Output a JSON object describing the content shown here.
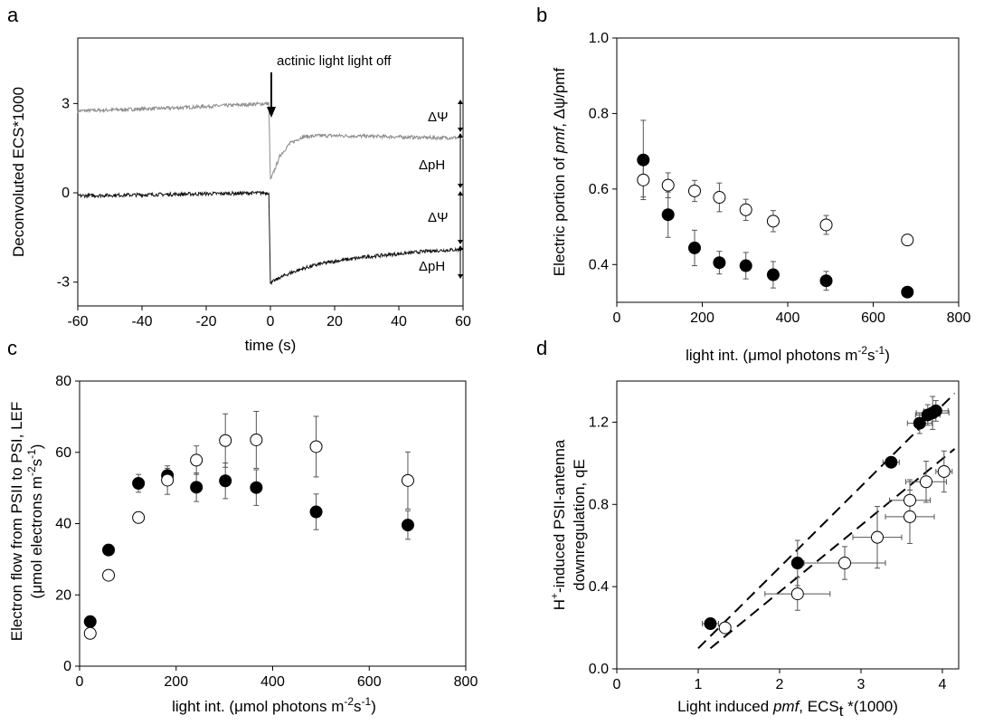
{
  "chart_data": [
    {
      "panel": "a",
      "type": "line",
      "xlabel": "time (s)",
      "ylabel": "Deconvoluted ECS*1000",
      "xlim": [
        -60,
        60
      ],
      "ylim": [
        -3.8,
        5.2
      ],
      "xticks": [
        -60,
        -40,
        -20,
        0,
        20,
        40,
        60
      ],
      "yticks": [
        -3,
        0,
        3
      ],
      "annotations": {
        "arrow_text": "actinic light light off",
        "dpsi_label": "ΔΨ",
        "dph_label": "ΔpH"
      },
      "series": [
        {
          "color": "#8c8c8c",
          "x": [
            -60,
            -30,
            -0.5,
            0,
            0.5,
            3,
            6,
            10,
            15,
            20,
            30,
            40,
            50,
            60
          ],
          "y": [
            2.75,
            2.85,
            3.0,
            0.45,
            0.55,
            1.25,
            1.65,
            1.88,
            1.92,
            1.92,
            1.9,
            1.88,
            1.85,
            1.85
          ]
        },
        {
          "color": "#111111",
          "x": [
            -60,
            -30,
            -0.5,
            0,
            0.5,
            3,
            6,
            10,
            15,
            20,
            30,
            40,
            50,
            60
          ],
          "y": [
            -0.1,
            -0.05,
            0.0,
            -3.0,
            -3.0,
            -2.85,
            -2.7,
            -2.55,
            -2.4,
            -2.3,
            -2.15,
            -2.05,
            -1.95,
            -1.9
          ]
        }
      ]
    },
    {
      "panel": "b",
      "type": "scatter",
      "xlabel": "light int. (μmol photons m⁻²s⁻¹)",
      "ylabel": "Electric portion of pmf, Δψ/pmf",
      "xlim": [
        0,
        800
      ],
      "ylim": [
        0.3,
        1.0
      ],
      "xticks": [
        0,
        200,
        400,
        600,
        800
      ],
      "yticks": [
        0.4,
        0.6,
        0.8,
        1.0
      ],
      "series": [
        {
          "marker": "filled",
          "x": [
            62,
            120,
            182,
            240,
            302,
            366,
            490,
            680
          ],
          "y": [
            0.677,
            0.532,
            0.444,
            0.405,
            0.397,
            0.373,
            0.357,
            0.327
          ],
          "err": [
            0.105,
            0.06,
            0.047,
            0.03,
            0.035,
            0.035,
            0.025,
            0.0
          ]
        },
        {
          "marker": "open",
          "x": [
            62,
            120,
            182,
            240,
            302,
            366,
            490,
            680
          ],
          "y": [
            0.624,
            0.61,
            0.595,
            0.578,
            0.545,
            0.515,
            0.505,
            0.465
          ],
          "err": [
            0.045,
            0.033,
            0.028,
            0.038,
            0.028,
            0.028,
            0.025,
            0.0
          ]
        }
      ]
    },
    {
      "panel": "c",
      "type": "scatter",
      "xlabel": "light int. (μmol photons m⁻²s⁻¹)",
      "ylabel": "Electron flow from PSII to PSI, LEF (μmol electrons m⁻²s⁻¹)",
      "xlim": [
        0,
        800
      ],
      "ylim": [
        0,
        80
      ],
      "xticks": [
        0,
        200,
        400,
        600,
        800
      ],
      "yticks": [
        0,
        20,
        40,
        60,
        80
      ],
      "series": [
        {
          "marker": "filled",
          "x": [
            22,
            60,
            122,
            182,
            242,
            302,
            366,
            490,
            680
          ],
          "y": [
            12.5,
            32.6,
            51.3,
            53.5,
            50.2,
            52.0,
            50.1,
            43.3,
            39.6
          ],
          "err": [
            0,
            0,
            2.5,
            2,
            4,
            5,
            5,
            5,
            4
          ]
        },
        {
          "marker": "open",
          "x": [
            22,
            60,
            122,
            182,
            242,
            302,
            366,
            490,
            680
          ],
          "y": [
            9.2,
            25.5,
            41.7,
            52.2,
            57.8,
            63.3,
            63.5,
            61.6,
            52.1
          ],
          "err": [
            1,
            0,
            0,
            4,
            4,
            7.5,
            8,
            8.5,
            8
          ]
        }
      ]
    },
    {
      "panel": "d",
      "type": "scatter",
      "xlabel": "Light induced pmf, ECSt *(1000)",
      "ylabel": "H⁺-induced PSII-antenna downregulation, qE",
      "xlim": [
        0,
        4.2
      ],
      "ylim": [
        0,
        1.4
      ],
      "xticks": [
        0,
        1,
        2,
        3,
        4
      ],
      "yticks": [
        0.0,
        0.4,
        0.8,
        1.2
      ],
      "series": [
        {
          "marker": "filled",
          "x": [
            1.15,
            2.22,
            3.37,
            3.72,
            3.82,
            3.88,
            3.92
          ],
          "y": [
            0.22,
            0.515,
            1.005,
            1.195,
            1.235,
            1.245,
            1.255
          ],
          "xerr": [
            0.1,
            0,
            0.1,
            0.15,
            0.15,
            0.2,
            0.15
          ],
          "yerr": [
            0,
            0.11,
            0,
            0.05,
            0.05,
            0.08,
            0.05
          ]
        },
        {
          "marker": "open",
          "x": [
            1.33,
            2.22,
            2.8,
            3.2,
            3.6,
            3.6,
            3.8,
            4.02
          ],
          "y": [
            0.2,
            0.365,
            0.515,
            0.64,
            0.74,
            0.82,
            0.91,
            0.96
          ],
          "xerr": [
            0,
            0.4,
            0.5,
            0.3,
            0.3,
            0.25,
            0.25,
            0.1
          ],
          "yerr": [
            0,
            0.08,
            0.08,
            0.15,
            0.13,
            0.1,
            0.1,
            0.1
          ]
        }
      ],
      "fit_lines": [
        {
          "x": [
            1.0,
            4.15
          ],
          "y": [
            0.1,
            1.34
          ]
        },
        {
          "x": [
            1.15,
            4.15
          ],
          "y": [
            0.1,
            1.07
          ]
        }
      ]
    }
  ],
  "panel_labels": [
    "a",
    "b",
    "c",
    "d"
  ],
  "text": {
    "a_ylabel": "Deconvoluted ECS*1000",
    "a_xlabel": "time (s)",
    "a_arrow_text": "actinic light light off",
    "dpsi": "ΔΨ",
    "dph": "ΔpH",
    "b_ylabel_pre": "Electric portion of ",
    "b_ylabel_it": "pmf",
    "b_ylabel_post": ", Δψ/pmf",
    "bc_xlabel_pre": "light int. (μmol photons m",
    "bc_xlabel_sup1": "-2",
    "bc_xlabel_mid": "s",
    "bc_xlabel_sup2": "-1",
    "bc_xlabel_post": ")",
    "c_ylabel1": "Electron flow from PSII to PSI, LEF",
    "c_ylabel2_pre": "(μmol electrons m",
    "c_ylabel2_sup1": "-2",
    "c_ylabel2_mid": "s",
    "c_ylabel2_sup2": "-1",
    "c_ylabel2_post": ")",
    "d_ylabel1_pre": "H",
    "d_ylabel1_sup": "+",
    "d_ylabel1_post": "-induced PSII-antenna",
    "d_ylabel2": "downregulation, qE",
    "d_xlabel_pre": "Light induced ",
    "d_xlabel_it": "pmf",
    "d_xlabel_mid": ", ECS",
    "d_xlabel_sub": "t",
    "d_xlabel_post": " *(1000)"
  }
}
